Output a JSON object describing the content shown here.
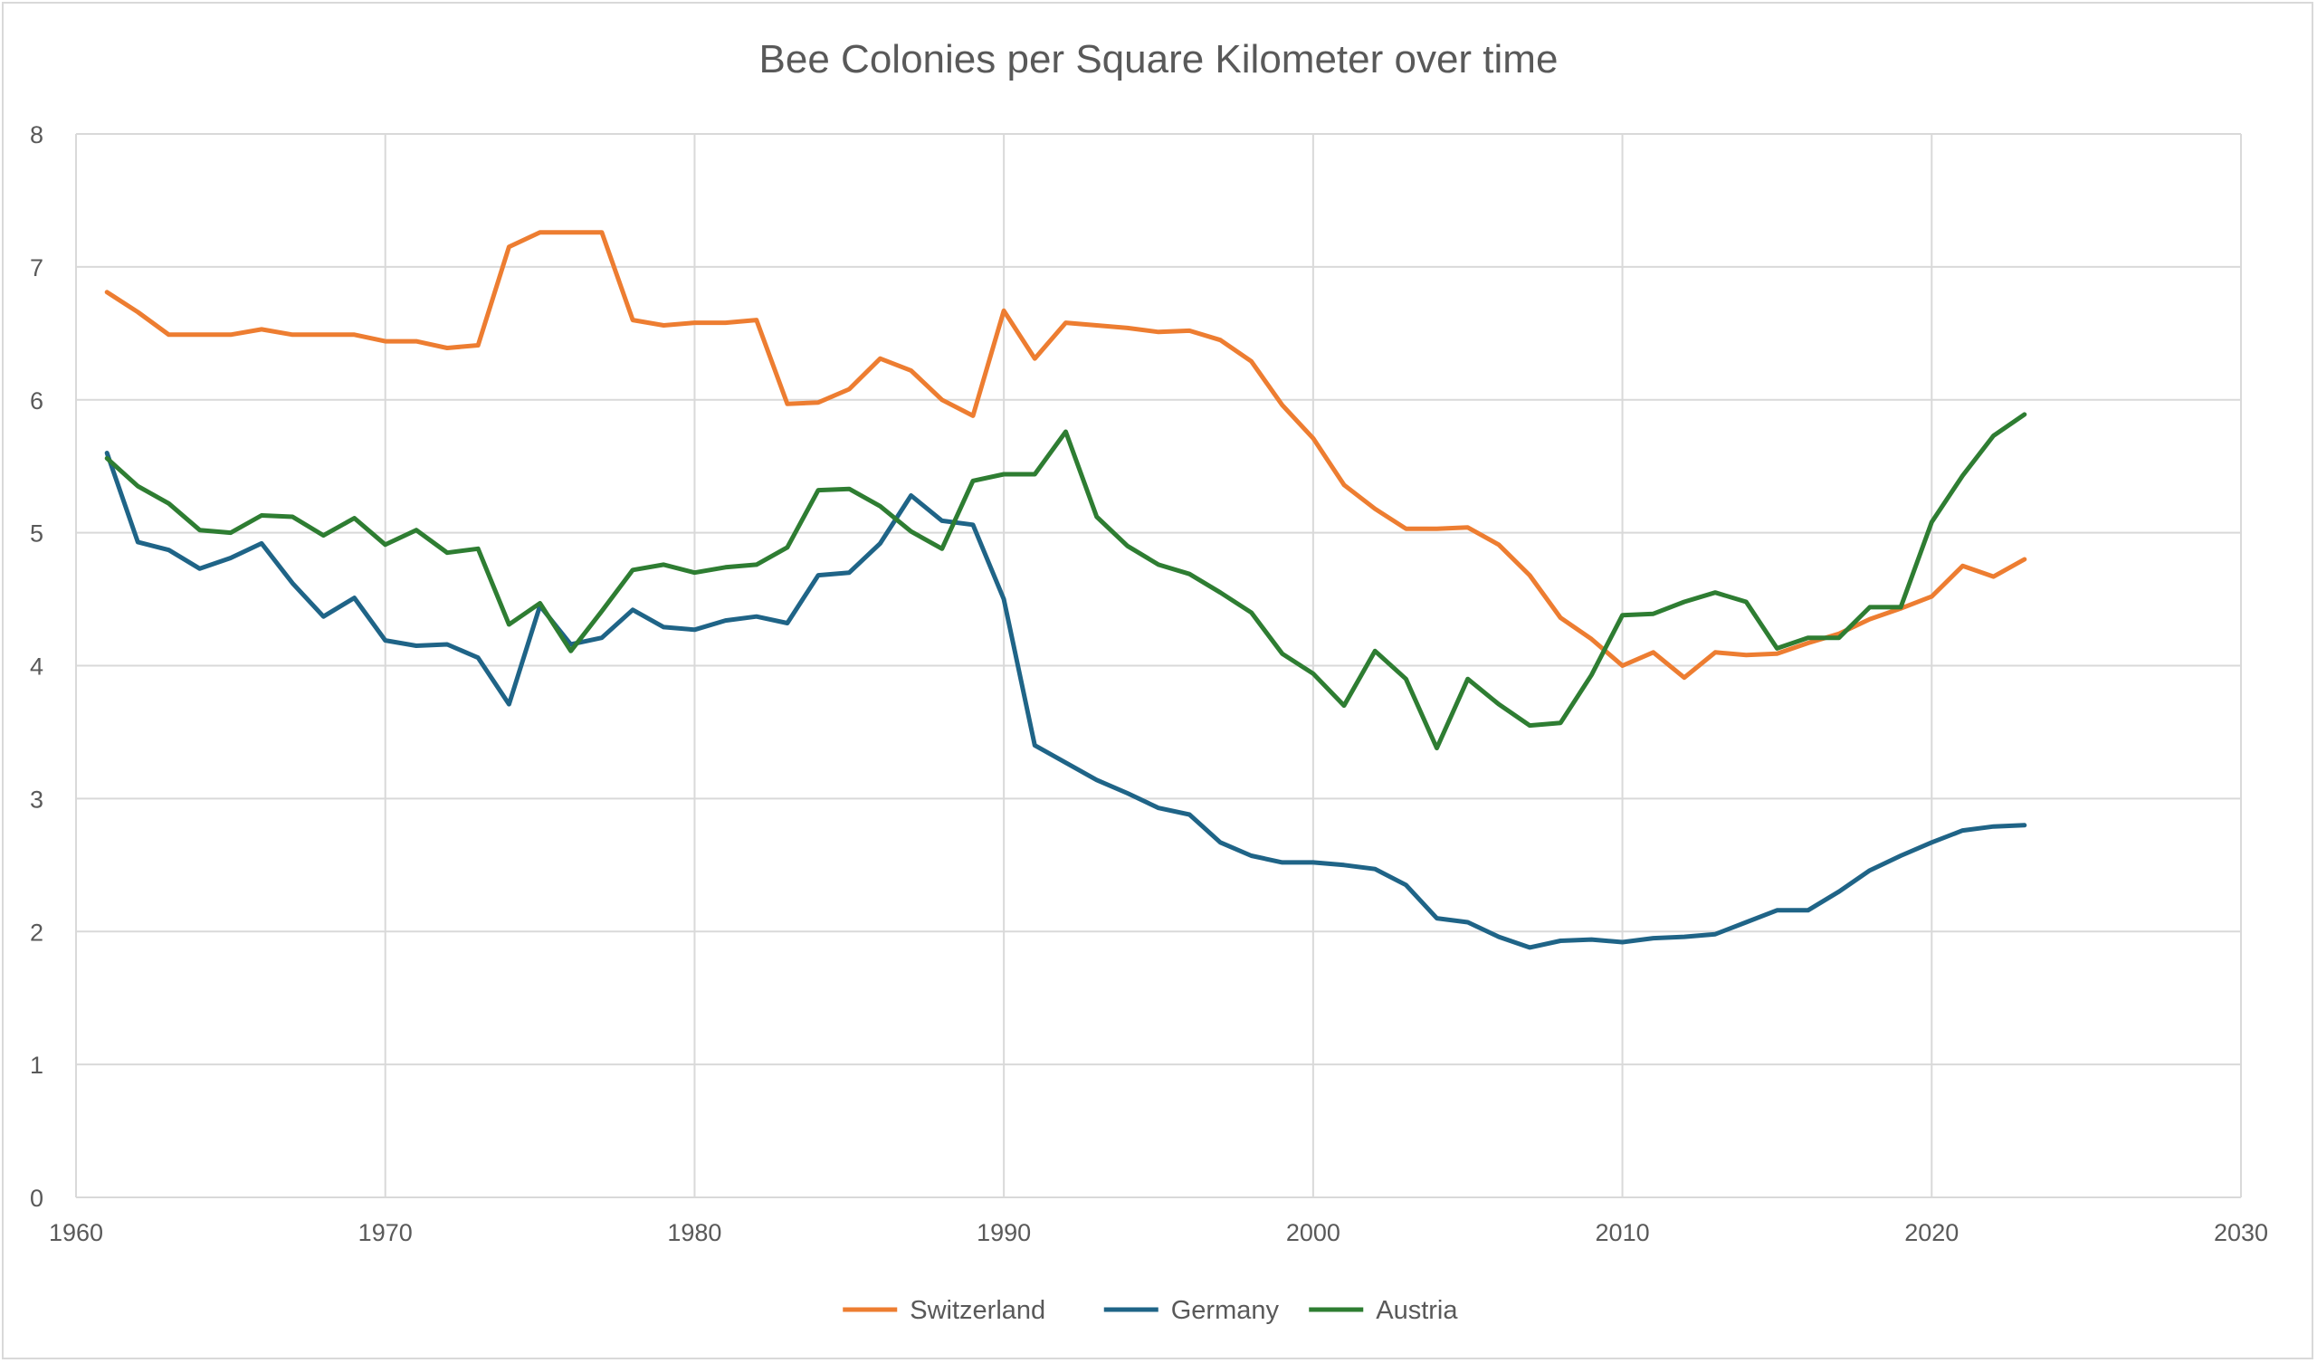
{
  "chart_data": {
    "type": "line",
    "title": "Bee Colonies per Square Kilometer over time",
    "xlabel": "",
    "ylabel": "",
    "xlim": [
      1960,
      2030
    ],
    "ylim": [
      0,
      8
    ],
    "x_ticks": [
      1960,
      1970,
      1980,
      1990,
      2000,
      2010,
      2020,
      2030
    ],
    "y_ticks": [
      0,
      1,
      2,
      3,
      4,
      5,
      6,
      7,
      8
    ],
    "grid": true,
    "legend_position": "bottom",
    "x": [
      1961,
      1962,
      1963,
      1964,
      1965,
      1966,
      1967,
      1968,
      1969,
      1970,
      1971,
      1972,
      1973,
      1974,
      1975,
      1976,
      1977,
      1978,
      1979,
      1980,
      1981,
      1982,
      1983,
      1984,
      1985,
      1986,
      1987,
      1988,
      1989,
      1990,
      1991,
      1992,
      1993,
      1994,
      1995,
      1996,
      1997,
      1998,
      1999,
      2000,
      2001,
      2002,
      2003,
      2004,
      2005,
      2006,
      2007,
      2008,
      2009,
      2010,
      2011,
      2012,
      2013,
      2014,
      2015,
      2016,
      2017,
      2018,
      2019,
      2020,
      2021,
      2022,
      2023
    ],
    "series": [
      {
        "name": "Switzerland",
        "color": "#ED7D31",
        "values": [
          6.81,
          6.66,
          6.49,
          6.49,
          6.49,
          6.53,
          6.49,
          6.49,
          6.49,
          6.44,
          6.44,
          6.39,
          6.41,
          7.15,
          7.26,
          7.26,
          7.26,
          6.6,
          6.56,
          6.58,
          6.58,
          6.6,
          5.97,
          5.98,
          6.08,
          6.31,
          6.22,
          6.0,
          5.88,
          6.67,
          6.31,
          6.58,
          6.56,
          6.54,
          6.51,
          6.52,
          6.45,
          6.29,
          5.96,
          5.71,
          5.36,
          5.18,
          5.03,
          5.03,
          5.04,
          4.91,
          4.68,
          4.36,
          4.2,
          4.0,
          4.1,
          3.91,
          4.1,
          4.08,
          4.09,
          4.17,
          4.24,
          4.35,
          4.43,
          4.52,
          4.75,
          4.67,
          4.8
        ]
      },
      {
        "name": "Germany",
        "color": "#1F6487",
        "values": [
          5.6,
          4.93,
          4.87,
          4.73,
          4.81,
          4.92,
          4.62,
          4.37,
          4.51,
          4.19,
          4.15,
          4.16,
          4.06,
          3.71,
          4.45,
          4.16,
          4.21,
          4.42,
          4.29,
          4.27,
          4.34,
          4.37,
          4.32,
          4.68,
          4.7,
          4.92,
          5.28,
          5.09,
          5.06,
          4.5,
          3.4,
          3.27,
          3.14,
          3.04,
          2.93,
          2.88,
          2.67,
          2.57,
          2.52,
          2.52,
          2.5,
          2.47,
          2.35,
          2.1,
          2.07,
          1.96,
          1.88,
          1.93,
          1.94,
          1.92,
          1.95,
          1.96,
          1.98,
          2.07,
          2.16,
          2.16,
          2.3,
          2.46,
          2.57,
          2.67,
          2.76,
          2.79,
          2.8
        ]
      },
      {
        "name": "Austria",
        "color": "#2E7D32",
        "values": [
          5.56,
          5.35,
          5.22,
          5.02,
          5.0,
          5.13,
          5.12,
          4.98,
          5.11,
          4.91,
          5.02,
          4.85,
          4.88,
          4.31,
          4.47,
          4.11,
          4.41,
          4.72,
          4.76,
          4.7,
          4.74,
          4.76,
          4.89,
          5.32,
          5.33,
          5.2,
          5.01,
          4.88,
          5.39,
          5.44,
          5.44,
          5.76,
          5.12,
          4.9,
          4.76,
          4.69,
          4.55,
          4.4,
          4.09,
          3.94,
          3.7,
          4.11,
          3.9,
          3.38,
          3.9,
          3.71,
          3.55,
          3.57,
          3.93,
          4.38,
          4.39,
          4.48,
          4.55,
          4.48,
          4.13,
          4.21,
          4.21,
          4.44,
          4.44,
          5.08,
          5.43,
          5.73,
          5.89
        ]
      }
    ]
  }
}
